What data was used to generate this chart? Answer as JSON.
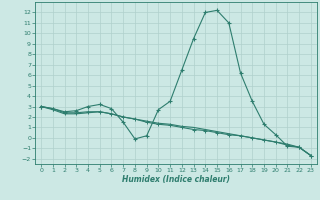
{
  "x": [
    0,
    1,
    2,
    3,
    4,
    5,
    6,
    7,
    8,
    9,
    10,
    11,
    12,
    13,
    14,
    15,
    16,
    17,
    18,
    19,
    20,
    21,
    22,
    23
  ],
  "line1": [
    3.0,
    2.8,
    2.5,
    2.6,
    3.0,
    3.2,
    2.8,
    1.5,
    -0.1,
    0.2,
    2.7,
    3.5,
    6.5,
    9.5,
    12.0,
    12.2,
    11.0,
    6.2,
    3.5,
    1.3,
    0.3,
    -0.8,
    -0.9,
    -1.7
  ],
  "line2": [
    3.0,
    2.8,
    2.4,
    2.4,
    2.5,
    2.5,
    2.3,
    2.0,
    1.8,
    1.5,
    1.3,
    1.2,
    1.0,
    0.8,
    0.7,
    0.5,
    0.3,
    0.2,
    0.0,
    -0.2,
    -0.4,
    -0.7,
    -0.9,
    -1.7
  ],
  "line3": [
    3.0,
    2.7,
    2.3,
    2.3,
    2.4,
    2.5,
    2.3,
    2.0,
    1.8,
    1.6,
    1.4,
    1.3,
    1.1,
    1.0,
    0.8,
    0.6,
    0.4,
    0.2,
    0.0,
    -0.2,
    -0.4,
    -0.6,
    -0.9,
    -1.7
  ],
  "line_color": "#2e7d6e",
  "bg_color": "#cce8e4",
  "grid_color": "#b0d0cc",
  "xlabel": "Humidex (Indice chaleur)",
  "ylim": [
    -2.5,
    13.0
  ],
  "xlim": [
    -0.5,
    23.5
  ],
  "yticks": [
    -2,
    -1,
    0,
    1,
    2,
    3,
    4,
    5,
    6,
    7,
    8,
    9,
    10,
    11,
    12
  ],
  "xticks": [
    0,
    1,
    2,
    3,
    4,
    5,
    6,
    7,
    8,
    9,
    10,
    11,
    12,
    13,
    14,
    15,
    16,
    17,
    18,
    19,
    20,
    21,
    22,
    23
  ]
}
